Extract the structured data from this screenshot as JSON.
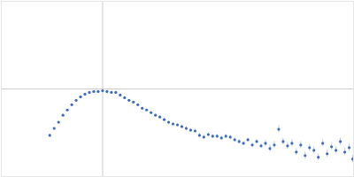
{
  "chart_data": {
    "type": "scatter",
    "color": "#3a6bc4",
    "marker": "circle",
    "grid": true,
    "tick_labels": false,
    "xlim": [
      0,
      4
    ],
    "ylim": [
      0,
      2
    ],
    "xticks": [
      1.15
    ],
    "yticks": [
      1
    ],
    "x": [
      0.55,
      0.6,
      0.65,
      0.7,
      0.75,
      0.8,
      0.85,
      0.9,
      0.95,
      1.0,
      1.05,
      1.1,
      1.15,
      1.2,
      1.25,
      1.3,
      1.35,
      1.4,
      1.45,
      1.5,
      1.55,
      1.6,
      1.65,
      1.7,
      1.75,
      1.8,
      1.85,
      1.9,
      1.95,
      2.0,
      2.05,
      2.1,
      2.15,
      2.2,
      2.25,
      2.3,
      2.35,
      2.4,
      2.45,
      2.5,
      2.55,
      2.6,
      2.65,
      2.7,
      2.75,
      2.8,
      2.85,
      2.9,
      2.95,
      3.0,
      3.05,
      3.1,
      3.15,
      3.2,
      3.25,
      3.3,
      3.35,
      3.4,
      3.45,
      3.5,
      3.55,
      3.6,
      3.65,
      3.7,
      3.75,
      3.8,
      3.85,
      3.9,
      3.95,
      3.99
    ],
    "values": [
      0.47,
      0.55,
      0.62,
      0.7,
      0.76,
      0.82,
      0.87,
      0.91,
      0.94,
      0.96,
      0.97,
      0.97,
      0.98,
      0.97,
      0.96,
      0.96,
      0.93,
      0.9,
      0.87,
      0.85,
      0.82,
      0.78,
      0.76,
      0.73,
      0.7,
      0.68,
      0.65,
      0.62,
      0.6,
      0.59,
      0.57,
      0.55,
      0.53,
      0.52,
      0.47,
      0.45,
      0.48,
      0.46,
      0.46,
      0.44,
      0.46,
      0.45,
      0.42,
      0.4,
      0.38,
      0.42,
      0.36,
      0.4,
      0.35,
      0.38,
      0.32,
      0.36,
      0.54,
      0.4,
      0.35,
      0.38,
      0.28,
      0.36,
      0.24,
      0.33,
      0.3,
      0.22,
      0.38,
      0.26,
      0.34,
      0.3,
      0.4,
      0.28,
      0.33,
      0.2
    ],
    "errors": [
      0.01,
      0.01,
      0.01,
      0.01,
      0.01,
      0.01,
      0.01,
      0.01,
      0.01,
      0.01,
      0.01,
      0.01,
      0.01,
      0.01,
      0.01,
      0.01,
      0.01,
      0.01,
      0.01,
      0.01,
      0.01,
      0.01,
      0.01,
      0.01,
      0.01,
      0.01,
      0.01,
      0.01,
      0.01,
      0.01,
      0.02,
      0.02,
      0.02,
      0.02,
      0.02,
      0.02,
      0.02,
      0.02,
      0.02,
      0.02,
      0.02,
      0.02,
      0.02,
      0.02,
      0.02,
      0.02,
      0.02,
      0.02,
      0.02,
      0.04,
      0.04,
      0.04,
      0.04,
      0.04,
      0.04,
      0.04,
      0.04,
      0.04,
      0.04,
      0.04,
      0.04,
      0.04,
      0.04,
      0.04,
      0.04,
      0.04,
      0.04,
      0.04,
      0.04,
      0.04
    ]
  }
}
